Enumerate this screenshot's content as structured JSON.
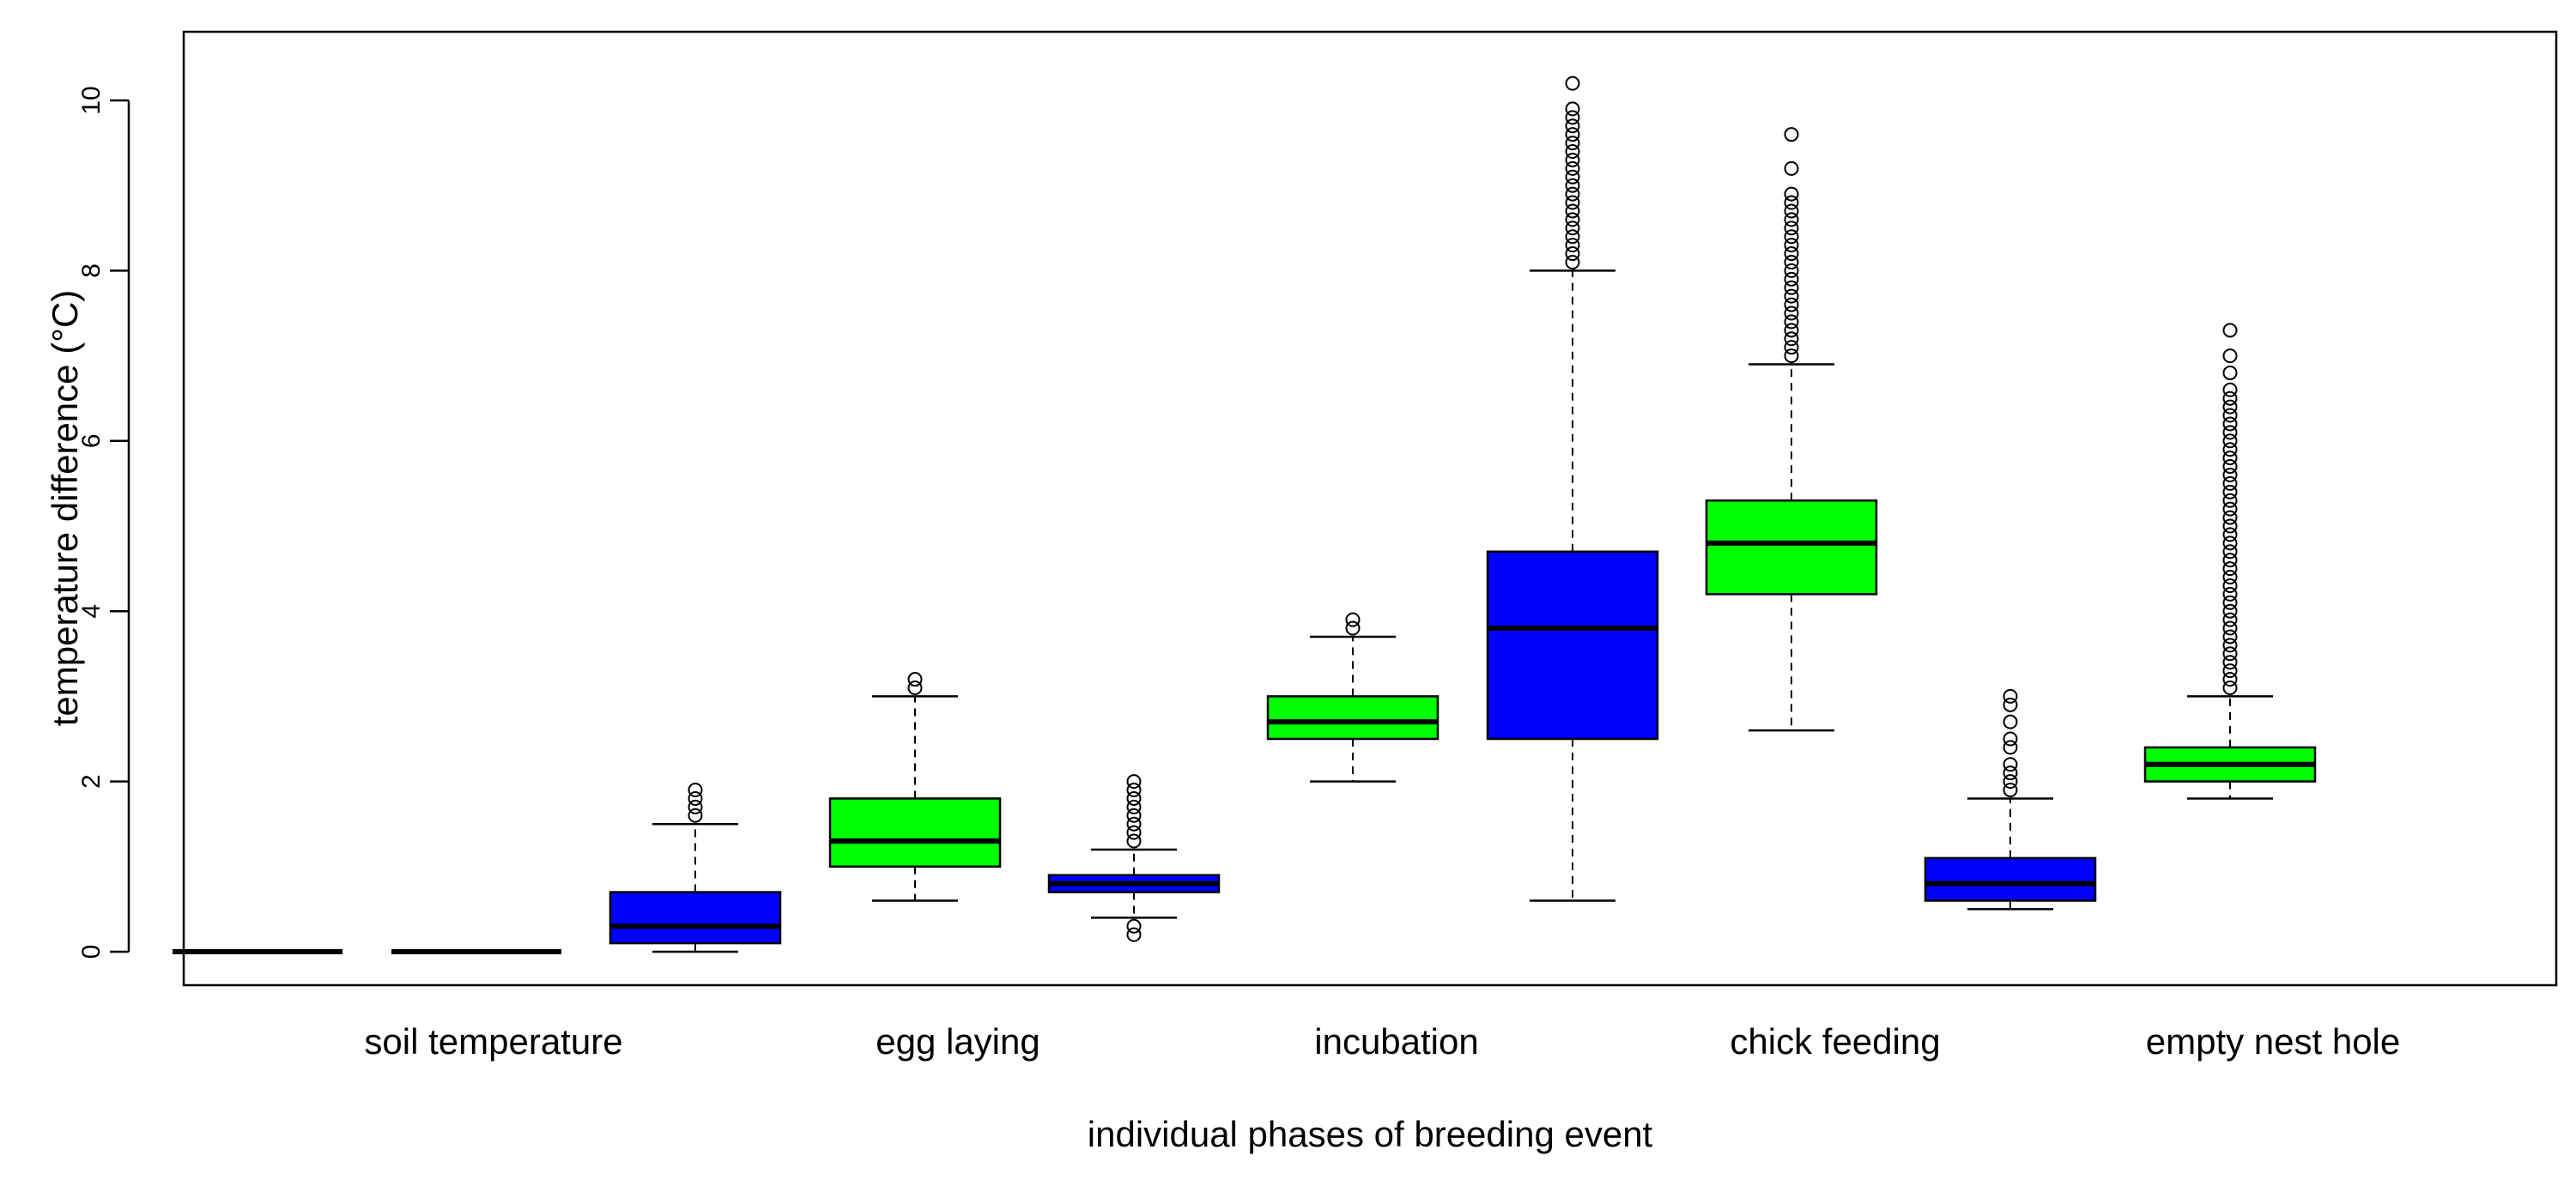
{
  "chart_data": {
    "type": "box",
    "xlabel": "individual phases of breeding event",
    "ylabel": "temperature difference (°C)",
    "ylim": [
      -0.4,
      10.4
    ],
    "yticks": [
      0,
      2,
      4,
      6,
      8,
      10
    ],
    "grid": false,
    "categories": [
      "soil temperature",
      "egg laying",
      "incubation",
      "chick feeding",
      "empty nest hole"
    ],
    "series_colors": [
      "#0000ff",
      "#00ff00"
    ],
    "boxes": [
      {
        "group": 0,
        "series": "blue",
        "whisker_low": 0,
        "q1": 0,
        "median": 0,
        "q3": 0,
        "whisker_high": 0,
        "outliers": []
      },
      {
        "group": 0,
        "series": "green",
        "whisker_low": 0,
        "q1": 0,
        "median": 0,
        "q3": 0,
        "whisker_high": 0,
        "outliers": []
      },
      {
        "group": 1,
        "series": "blue",
        "whisker_low": 0,
        "q1": 0.1,
        "median": 0.3,
        "q3": 0.7,
        "whisker_high": 1.5,
        "outliers": [
          1.6,
          1.7,
          1.8,
          1.9
        ]
      },
      {
        "group": 1,
        "series": "green",
        "whisker_low": 0.6,
        "q1": 1.0,
        "median": 1.3,
        "q3": 1.8,
        "whisker_high": 3.0,
        "outliers": [
          3.1,
          3.2
        ]
      },
      {
        "group": 2,
        "series": "blue",
        "whisker_low": 0.4,
        "q1": 0.7,
        "median": 0.8,
        "q3": 0.9,
        "whisker_high": 1.2,
        "outliers": [
          0.2,
          0.3,
          1.3,
          1.4,
          1.5,
          1.6,
          1.7,
          1.8,
          1.9,
          2.0
        ]
      },
      {
        "group": 2,
        "series": "green",
        "whisker_low": 2.0,
        "q1": 2.5,
        "median": 2.7,
        "q3": 3.0,
        "whisker_high": 3.7,
        "outliers": [
          3.8,
          3.9
        ]
      },
      {
        "group": 3,
        "series": "blue",
        "whisker_low": 0.6,
        "q1": 2.5,
        "median": 3.8,
        "q3": 4.7,
        "whisker_high": 8.0,
        "outliers": [
          8.1,
          8.2,
          8.3,
          8.4,
          8.5,
          8.6,
          8.7,
          8.8,
          8.9,
          9.0,
          9.1,
          9.2,
          9.3,
          9.4,
          9.5,
          9.6,
          9.7,
          9.8,
          9.9,
          10.2
        ]
      },
      {
        "group": 3,
        "series": "green",
        "whisker_low": 2.6,
        "q1": 4.2,
        "median": 4.8,
        "q3": 5.3,
        "whisker_high": 6.9,
        "outliers": [
          7.0,
          7.1,
          7.2,
          7.3,
          7.4,
          7.5,
          7.6,
          7.7,
          7.8,
          7.9,
          8.0,
          8.1,
          8.2,
          8.3,
          8.4,
          8.5,
          8.6,
          8.7,
          8.8,
          8.9,
          9.2,
          9.6
        ]
      },
      {
        "group": 4,
        "series": "blue",
        "whisker_low": 0.5,
        "q1": 0.6,
        "median": 0.8,
        "q3": 1.1,
        "whisker_high": 1.8,
        "outliers": [
          1.9,
          2.0,
          2.1,
          2.2,
          2.4,
          2.5,
          2.7,
          2.9,
          3.0
        ]
      },
      {
        "group": 4,
        "series": "green",
        "whisker_low": 1.8,
        "q1": 2.0,
        "median": 2.2,
        "q3": 2.4,
        "whisker_high": 3.0,
        "outliers": [
          3.1,
          3.2,
          3.3,
          3.4,
          3.5,
          3.6,
          3.7,
          3.8,
          3.9,
          4.0,
          4.1,
          4.2,
          4.3,
          4.4,
          4.5,
          4.6,
          4.7,
          4.8,
          4.9,
          5.0,
          5.1,
          5.2,
          5.3,
          5.4,
          5.5,
          5.6,
          5.7,
          5.8,
          5.9,
          6.0,
          6.1,
          6.2,
          6.3,
          6.4,
          6.5,
          6.6,
          6.8,
          7.0,
          7.3
        ]
      }
    ]
  }
}
